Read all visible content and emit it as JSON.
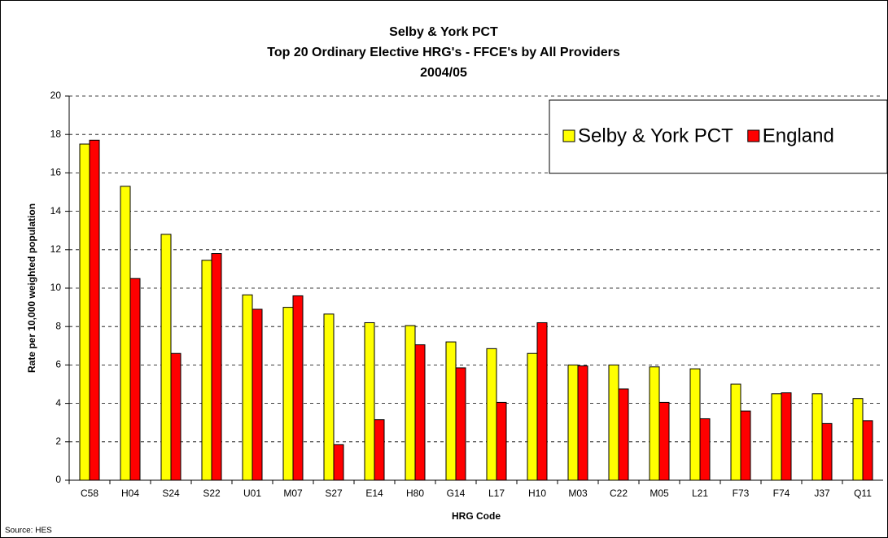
{
  "chart_data": {
    "type": "bar",
    "title": "Selby & York PCT",
    "subtitle": "Top 20 Ordinary Elective HRG's - FFCE's by All Providers",
    "period": "2004/05",
    "x_label": "HRG Code",
    "y_label": "Rate per 10,000 weighted population",
    "source": "Source: HES",
    "categories": [
      "C58",
      "H04",
      "S24",
      "S22",
      "U01",
      "M07",
      "S27",
      "E14",
      "H80",
      "G14",
      "L17",
      "H10",
      "M03",
      "C22",
      "M05",
      "L21",
      "F73",
      "F74",
      "J37",
      "Q11"
    ],
    "series": [
      {
        "name": "Selby & York PCT",
        "color": "#ffff00",
        "values": [
          17.5,
          15.3,
          12.8,
          11.45,
          9.65,
          9.0,
          8.65,
          8.2,
          8.05,
          7.2,
          6.85,
          6.6,
          6.0,
          6.0,
          5.9,
          5.8,
          5.0,
          4.5,
          4.5,
          4.25
        ]
      },
      {
        "name": "England",
        "color": "#ff0000",
        "values": [
          17.7,
          10.5,
          6.6,
          11.8,
          8.9,
          9.6,
          1.85,
          3.15,
          7.05,
          5.85,
          4.05,
          8.2,
          5.95,
          4.75,
          4.05,
          3.2,
          3.6,
          4.55,
          2.95,
          3.1
        ]
      }
    ],
    "ylim": [
      0,
      20
    ],
    "yticks": [
      0,
      2,
      4,
      6,
      8,
      10,
      12,
      14,
      16,
      18,
      20
    ],
    "grid": true,
    "legend": "top-right"
  }
}
